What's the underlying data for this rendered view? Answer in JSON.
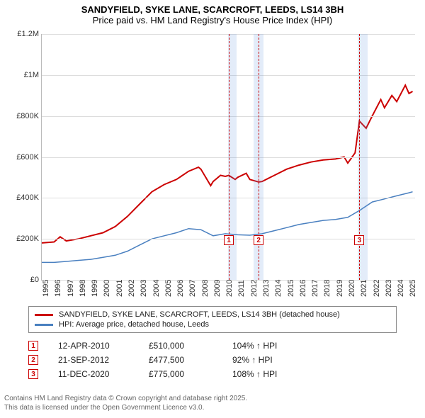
{
  "title": {
    "line1": "SANDYFIELD, SYKE LANE, SCARCROFT, LEEDS, LS14 3BH",
    "line2": "Price paid vs. HM Land Registry's House Price Index (HPI)"
  },
  "chart": {
    "type": "line",
    "background_color": "#ffffff",
    "grid_color": "#dddddd",
    "xlim": [
      1995,
      2025.5
    ],
    "ylim": [
      0,
      1200000
    ],
    "yticks": [
      {
        "v": 0,
        "label": "£0"
      },
      {
        "v": 200000,
        "label": "£200K"
      },
      {
        "v": 400000,
        "label": "£400K"
      },
      {
        "v": 600000,
        "label": "£600K"
      },
      {
        "v": 800000,
        "label": "£800K"
      },
      {
        "v": 1000000,
        "label": "£1M"
      },
      {
        "v": 1200000,
        "label": "£1.2M"
      }
    ],
    "xticks": [
      {
        "v": 1995,
        "label": "1995"
      },
      {
        "v": 1996,
        "label": "1996"
      },
      {
        "v": 1997,
        "label": "1997"
      },
      {
        "v": 1998,
        "label": "1998"
      },
      {
        "v": 1999,
        "label": "1999"
      },
      {
        "v": 2000,
        "label": "2000"
      },
      {
        "v": 2001,
        "label": "2001"
      },
      {
        "v": 2002,
        "label": "2002"
      },
      {
        "v": 2003,
        "label": "2003"
      },
      {
        "v": 2004,
        "label": "2004"
      },
      {
        "v": 2005,
        "label": "2005"
      },
      {
        "v": 2006,
        "label": "2006"
      },
      {
        "v": 2007,
        "label": "2007"
      },
      {
        "v": 2008,
        "label": "2008"
      },
      {
        "v": 2009,
        "label": "2009"
      },
      {
        "v": 2010,
        "label": "2010"
      },
      {
        "v": 2011,
        "label": "2011"
      },
      {
        "v": 2012,
        "label": "2012"
      },
      {
        "v": 2013,
        "label": "2013"
      },
      {
        "v": 2014,
        "label": "2014"
      },
      {
        "v": 2015,
        "label": "2015"
      },
      {
        "v": 2016,
        "label": "2016"
      },
      {
        "v": 2017,
        "label": "2017"
      },
      {
        "v": 2018,
        "label": "2018"
      },
      {
        "v": 2019,
        "label": "2019"
      },
      {
        "v": 2020,
        "label": "2020"
      },
      {
        "v": 2021,
        "label": "2021"
      },
      {
        "v": 2022,
        "label": "2022"
      },
      {
        "v": 2023,
        "label": "2023"
      },
      {
        "v": 2024,
        "label": "2024"
      },
      {
        "v": 2025,
        "label": "2025"
      }
    ],
    "bands": [
      {
        "from": 2010.2,
        "to": 2010.9
      },
      {
        "from": 2012.3,
        "to": 2013.1
      },
      {
        "from": 2020.8,
        "to": 2021.6
      }
    ],
    "markers": [
      {
        "id": 1,
        "x": 2010.28,
        "y_label": 195000
      },
      {
        "id": 2,
        "x": 2012.72,
        "y_label": 195000
      },
      {
        "id": 3,
        "x": 2020.95,
        "y_label": 195000
      }
    ],
    "series": [
      {
        "name": "SANDYFIELD, SYKE LANE, SCARCROFT, LEEDS, LS14 3BH (detached house)",
        "color": "#cc0000",
        "width": 2,
        "data": [
          [
            1995,
            180000
          ],
          [
            1996,
            185000
          ],
          [
            1996.5,
            210000
          ],
          [
            1997,
            190000
          ],
          [
            1998,
            200000
          ],
          [
            1999,
            215000
          ],
          [
            2000,
            230000
          ],
          [
            2001,
            260000
          ],
          [
            2002,
            310000
          ],
          [
            2003,
            370000
          ],
          [
            2004,
            430000
          ],
          [
            2005,
            465000
          ],
          [
            2006,
            490000
          ],
          [
            2007,
            530000
          ],
          [
            2007.8,
            550000
          ],
          [
            2008,
            540000
          ],
          [
            2008.8,
            460000
          ],
          [
            2009,
            480000
          ],
          [
            2009.6,
            510000
          ],
          [
            2010,
            505000
          ],
          [
            2010.28,
            510000
          ],
          [
            2010.8,
            490000
          ],
          [
            2011,
            500000
          ],
          [
            2011.7,
            520000
          ],
          [
            2012,
            490000
          ],
          [
            2012.72,
            477500
          ],
          [
            2013,
            480000
          ],
          [
            2014,
            510000
          ],
          [
            2015,
            540000
          ],
          [
            2016,
            560000
          ],
          [
            2017,
            575000
          ],
          [
            2018,
            585000
          ],
          [
            2019,
            590000
          ],
          [
            2019.7,
            600000
          ],
          [
            2020,
            570000
          ],
          [
            2020.6,
            620000
          ],
          [
            2020.95,
            775000
          ],
          [
            2021.5,
            740000
          ],
          [
            2022,
            800000
          ],
          [
            2022.7,
            880000
          ],
          [
            2023,
            840000
          ],
          [
            2023.6,
            900000
          ],
          [
            2024,
            870000
          ],
          [
            2024.7,
            950000
          ],
          [
            2025,
            910000
          ],
          [
            2025.3,
            920000
          ]
        ]
      },
      {
        "name": "HPI: Average price, detached house, Leeds",
        "color": "#4a80c0",
        "width": 1.5,
        "data": [
          [
            1995,
            85000
          ],
          [
            1996,
            85000
          ],
          [
            1997,
            90000
          ],
          [
            1998,
            95000
          ],
          [
            1999,
            100000
          ],
          [
            2000,
            110000
          ],
          [
            2001,
            120000
          ],
          [
            2002,
            140000
          ],
          [
            2003,
            170000
          ],
          [
            2004,
            200000
          ],
          [
            2005,
            215000
          ],
          [
            2006,
            230000
          ],
          [
            2007,
            250000
          ],
          [
            2008,
            245000
          ],
          [
            2009,
            215000
          ],
          [
            2010,
            225000
          ],
          [
            2011,
            220000
          ],
          [
            2012,
            218000
          ],
          [
            2013,
            225000
          ],
          [
            2014,
            240000
          ],
          [
            2015,
            255000
          ],
          [
            2016,
            270000
          ],
          [
            2017,
            280000
          ],
          [
            2018,
            290000
          ],
          [
            2019,
            295000
          ],
          [
            2020,
            305000
          ],
          [
            2021,
            340000
          ],
          [
            2022,
            380000
          ],
          [
            2023,
            395000
          ],
          [
            2024,
            410000
          ],
          [
            2025,
            425000
          ],
          [
            2025.3,
            430000
          ]
        ]
      }
    ]
  },
  "legend": {
    "items": [
      {
        "color": "#cc0000",
        "label": "SANDYFIELD, SYKE LANE, SCARCROFT, LEEDS, LS14 3BH (detached house)"
      },
      {
        "color": "#4a80c0",
        "label": "HPI: Average price, detached house, Leeds"
      }
    ]
  },
  "events": [
    {
      "id": 1,
      "date": "12-APR-2010",
      "price": "£510,000",
      "pct": "104% ↑ HPI"
    },
    {
      "id": 2,
      "date": "21-SEP-2012",
      "price": "£477,500",
      "pct": "92% ↑ HPI"
    },
    {
      "id": 3,
      "date": "11-DEC-2020",
      "price": "£775,000",
      "pct": "108% ↑ HPI"
    }
  ],
  "footer": {
    "line1": "Contains HM Land Registry data © Crown copyright and database right 2025.",
    "line2": "This data is licensed under the Open Government Licence v3.0."
  }
}
